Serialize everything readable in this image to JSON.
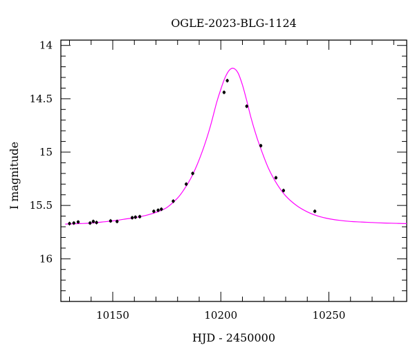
{
  "chart_data": {
    "type": "scatter",
    "title": "OGLE-2023-BLG-1124",
    "xlabel": "HJD - 2450000",
    "ylabel": "I magnitude",
    "xlim": [
      10126,
      10286
    ],
    "ylim": [
      16.4,
      13.95
    ],
    "y_inverted": true,
    "grid": false,
    "x_major_ticks": [
      10150,
      10200,
      10250
    ],
    "x_tick_labels": [
      "10150",
      "10200",
      "10250"
    ],
    "y_major_ticks": [
      14,
      14.5,
      15,
      15.5,
      16
    ],
    "y_tick_labels": [
      "14",
      "14.5",
      "15",
      "15.5",
      "16"
    ],
    "colors": {
      "points": "#000000",
      "model": "#ff00ff",
      "axes": "#000000"
    },
    "series": [
      {
        "kind": "points",
        "x": [
          10130.0,
          10132.0,
          10134.0,
          10139.5,
          10141.0,
          10142.5,
          10149.0,
          10152.0,
          10159.0,
          10160.5,
          10162.5,
          10169.0,
          10171.0,
          10172.5,
          10178.0,
          10184.0,
          10187.0,
          10201.5,
          10203.0,
          10212.0,
          10218.5,
          10225.5,
          10229.0,
          10243.5
        ],
        "y": [
          15.67,
          15.665,
          15.655,
          15.665,
          15.65,
          15.66,
          15.645,
          15.65,
          15.615,
          15.61,
          15.605,
          15.555,
          15.545,
          15.535,
          15.46,
          15.3,
          15.2,
          14.44,
          14.33,
          14.57,
          14.94,
          15.24,
          15.36,
          15.555
        ],
        "yerr": [
          0.008,
          0.008,
          0.008,
          0.008,
          0.008,
          0.008,
          0.008,
          0.008,
          0.008,
          0.008,
          0.008,
          0.008,
          0.008,
          0.008,
          0.008,
          0.008,
          0.008,
          0.008,
          0.008,
          0.008,
          0.008,
          0.008,
          0.008,
          0.008
        ]
      },
      {
        "kind": "model",
        "x": [
          10128,
          10135,
          10140,
          10145,
          10150,
          10155,
          10160,
          10165,
          10170,
          10175,
          10180,
          10183,
          10186,
          10189,
          10192,
          10195,
          10198,
          10200,
          10202,
          10204,
          10206,
          10208,
          10210,
          10212,
          10214,
          10216,
          10218,
          10222,
          10226,
          10230,
          10235,
          10240,
          10245,
          10250,
          10255,
          10260,
          10265,
          10270,
          10276,
          10282,
          10286
        ],
        "y": [
          15.675,
          15.67,
          15.665,
          15.655,
          15.645,
          15.63,
          15.615,
          15.595,
          15.565,
          15.52,
          15.43,
          15.35,
          15.25,
          15.12,
          14.96,
          14.77,
          14.54,
          14.41,
          14.3,
          14.23,
          14.215,
          14.26,
          14.37,
          14.52,
          14.68,
          14.82,
          14.94,
          15.15,
          15.3,
          15.41,
          15.5,
          15.56,
          15.6,
          15.625,
          15.64,
          15.65,
          15.655,
          15.66,
          15.665,
          15.668,
          15.67
        ]
      }
    ]
  }
}
